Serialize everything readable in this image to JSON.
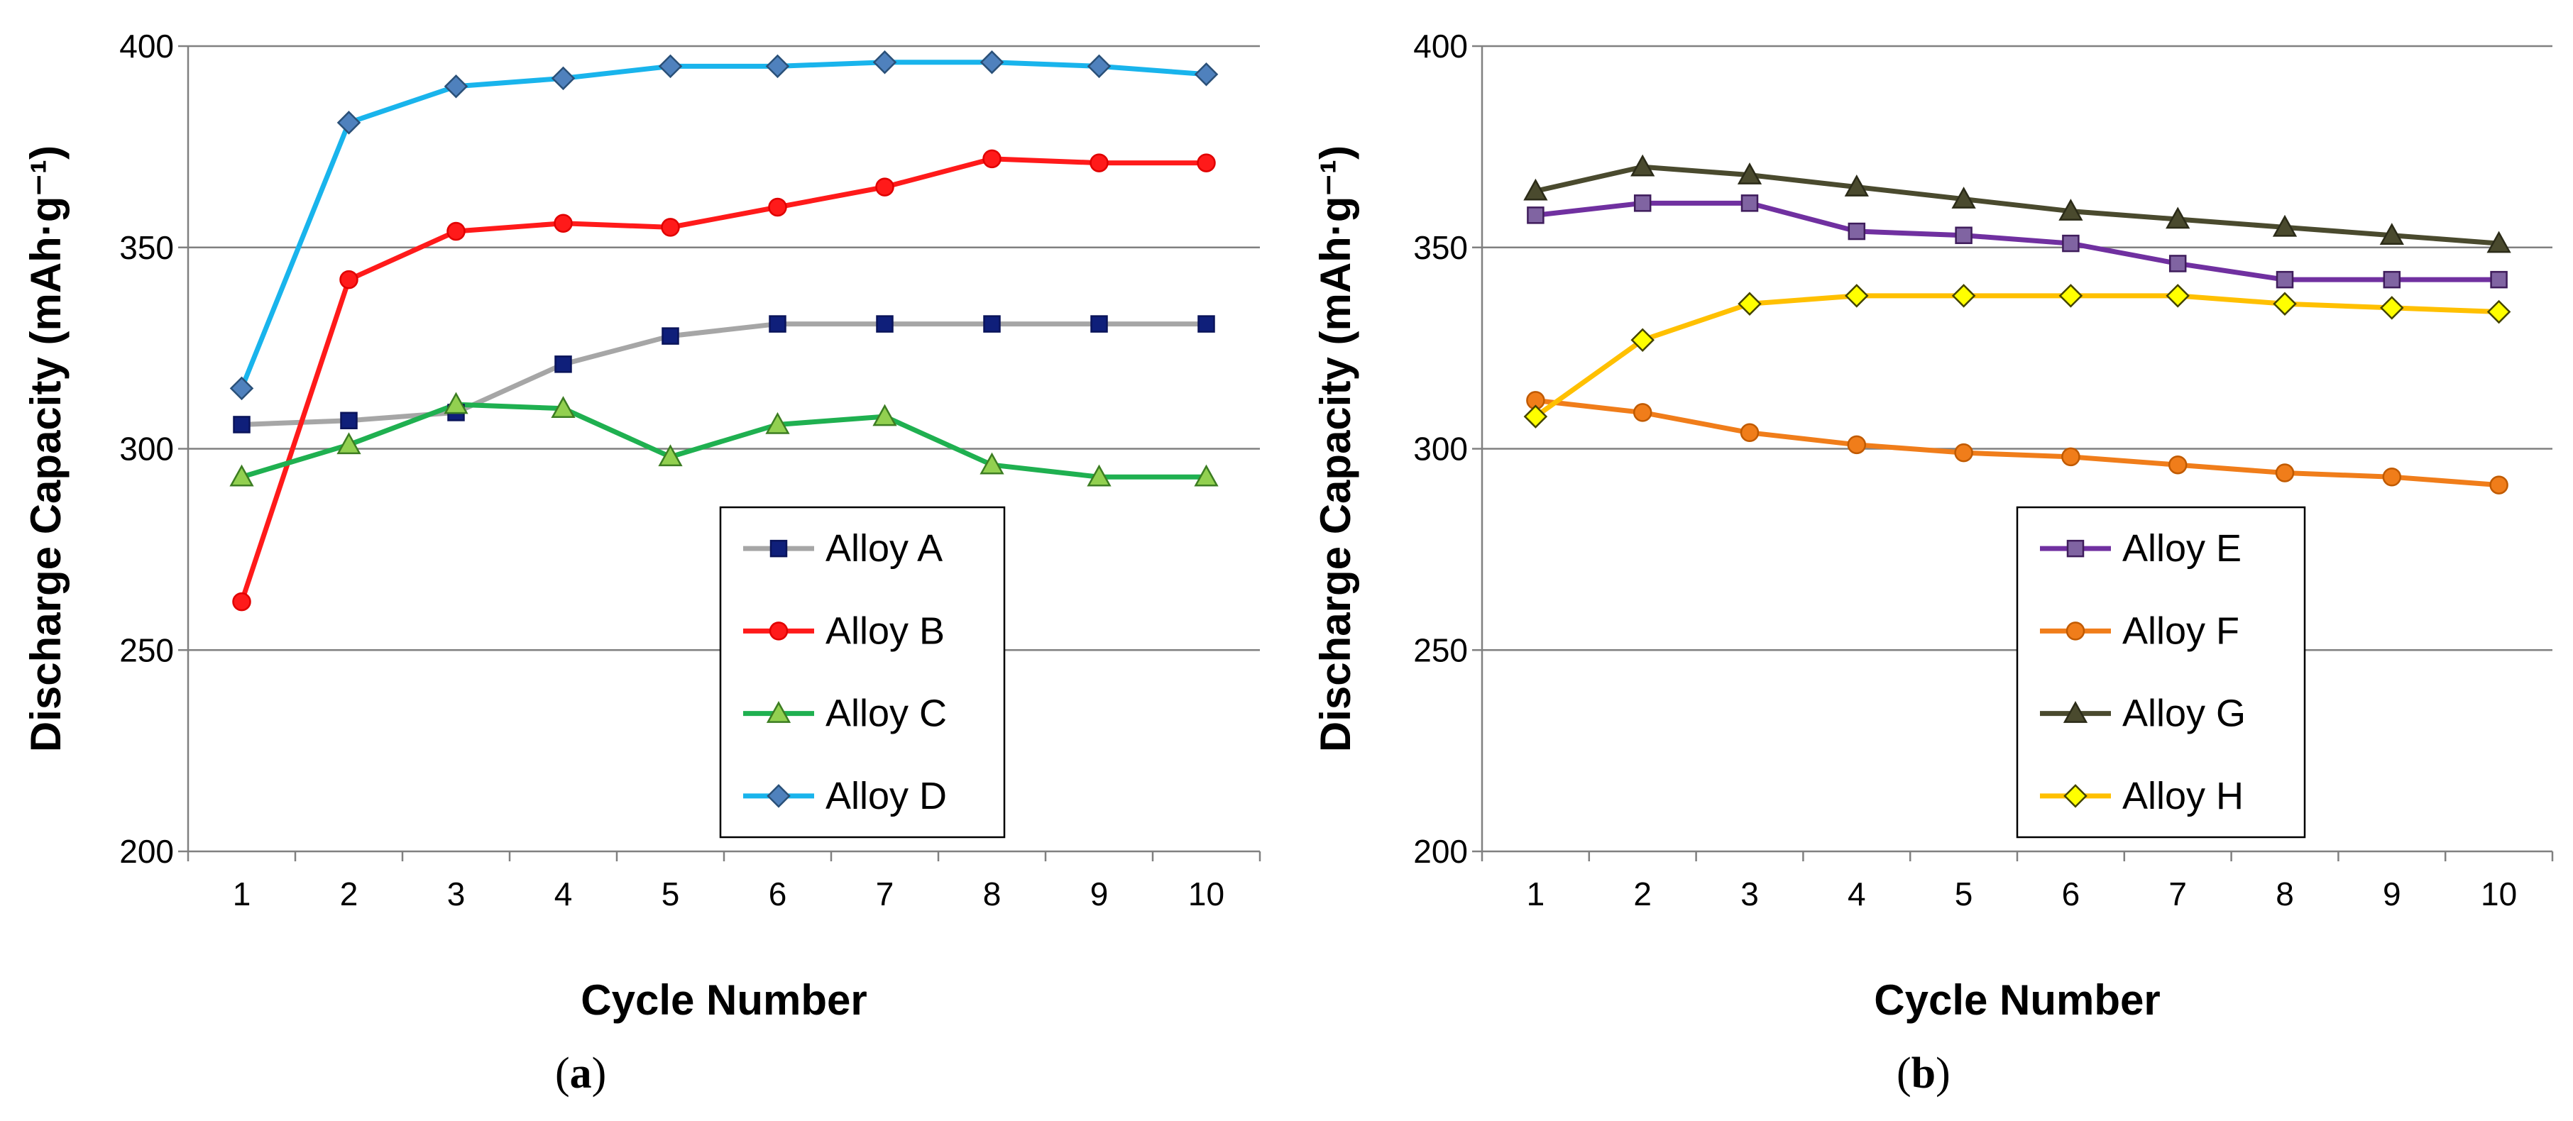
{
  "charts": {
    "a": {
      "type": "line",
      "panel_label": "a",
      "ylabel": "Discharge Capacity (mAh·g⁻¹)",
      "xlabel": "Cycle Number",
      "ylim": [
        200,
        400
      ],
      "yticks": [
        "200",
        "250",
        "300",
        "350",
        "400"
      ],
      "categories": [
        "1",
        "2",
        "3",
        "4",
        "5",
        "6",
        "7",
        "8",
        "9",
        "10"
      ],
      "series": [
        {
          "name": "Alloy A",
          "line": "#a6a6a6",
          "fill": "#0f1f7a",
          "edge": "#0a145a",
          "marker": "square",
          "values": [
            306,
            307,
            309,
            321,
            328,
            331,
            331,
            331,
            331,
            331
          ]
        },
        {
          "name": "Alloy B",
          "line": "#ff1a1a",
          "fill": "#ff1a1a",
          "edge": "#e00000",
          "marker": "circle",
          "values": [
            262,
            342,
            354,
            356,
            355,
            360,
            365,
            372,
            371,
            371
          ]
        },
        {
          "name": "Alloy C",
          "line": "#1fb050",
          "fill": "#92d050",
          "edge": "#3c7d22",
          "marker": "triangle",
          "values": [
            293,
            301,
            311,
            310,
            298,
            306,
            308,
            296,
            293,
            293
          ]
        },
        {
          "name": "Alloy D",
          "line": "#19b4ec",
          "fill": "#4f81bd",
          "edge": "#2a5078",
          "marker": "diamond",
          "values": [
            315,
            381,
            390,
            392,
            395,
            395,
            396,
            396,
            395,
            393
          ]
        }
      ]
    },
    "b": {
      "type": "line",
      "panel_label": "b",
      "ylabel": "Discharge Capacity (mAh·g⁻¹)",
      "xlabel": "Cycle Number",
      "ylim": [
        200,
        400
      ],
      "yticks": [
        "200",
        "250",
        "300",
        "350",
        "400"
      ],
      "categories": [
        "1",
        "2",
        "3",
        "4",
        "5",
        "6",
        "7",
        "8",
        "9",
        "10"
      ],
      "series": [
        {
          "name": "Alloy E",
          "line": "#7030a0",
          "fill": "#8064a2",
          "edge": "#3f1d5c",
          "marker": "square",
          "values": [
            358,
            361,
            361,
            354,
            353,
            351,
            346,
            342,
            342,
            342
          ]
        },
        {
          "name": "Alloy F",
          "line": "#f07d1a",
          "fill": "#f07d1a",
          "edge": "#c05a00",
          "marker": "circle",
          "values": [
            312,
            309,
            304,
            301,
            299,
            298,
            296,
            294,
            293,
            291
          ]
        },
        {
          "name": "Alloy G",
          "line": "#4a4a2e",
          "fill": "#4a4a2e",
          "edge": "#2b2b18",
          "marker": "triangle",
          "values": [
            364,
            370,
            368,
            365,
            362,
            359,
            357,
            355,
            353,
            351
          ]
        },
        {
          "name": "Alloy H",
          "line": "#ffc000",
          "fill": "#ffff00",
          "edge": "#444400",
          "marker": "diamond",
          "values": [
            308,
            327,
            336,
            338,
            338,
            338,
            338,
            336,
            335,
            334
          ]
        }
      ]
    }
  }
}
